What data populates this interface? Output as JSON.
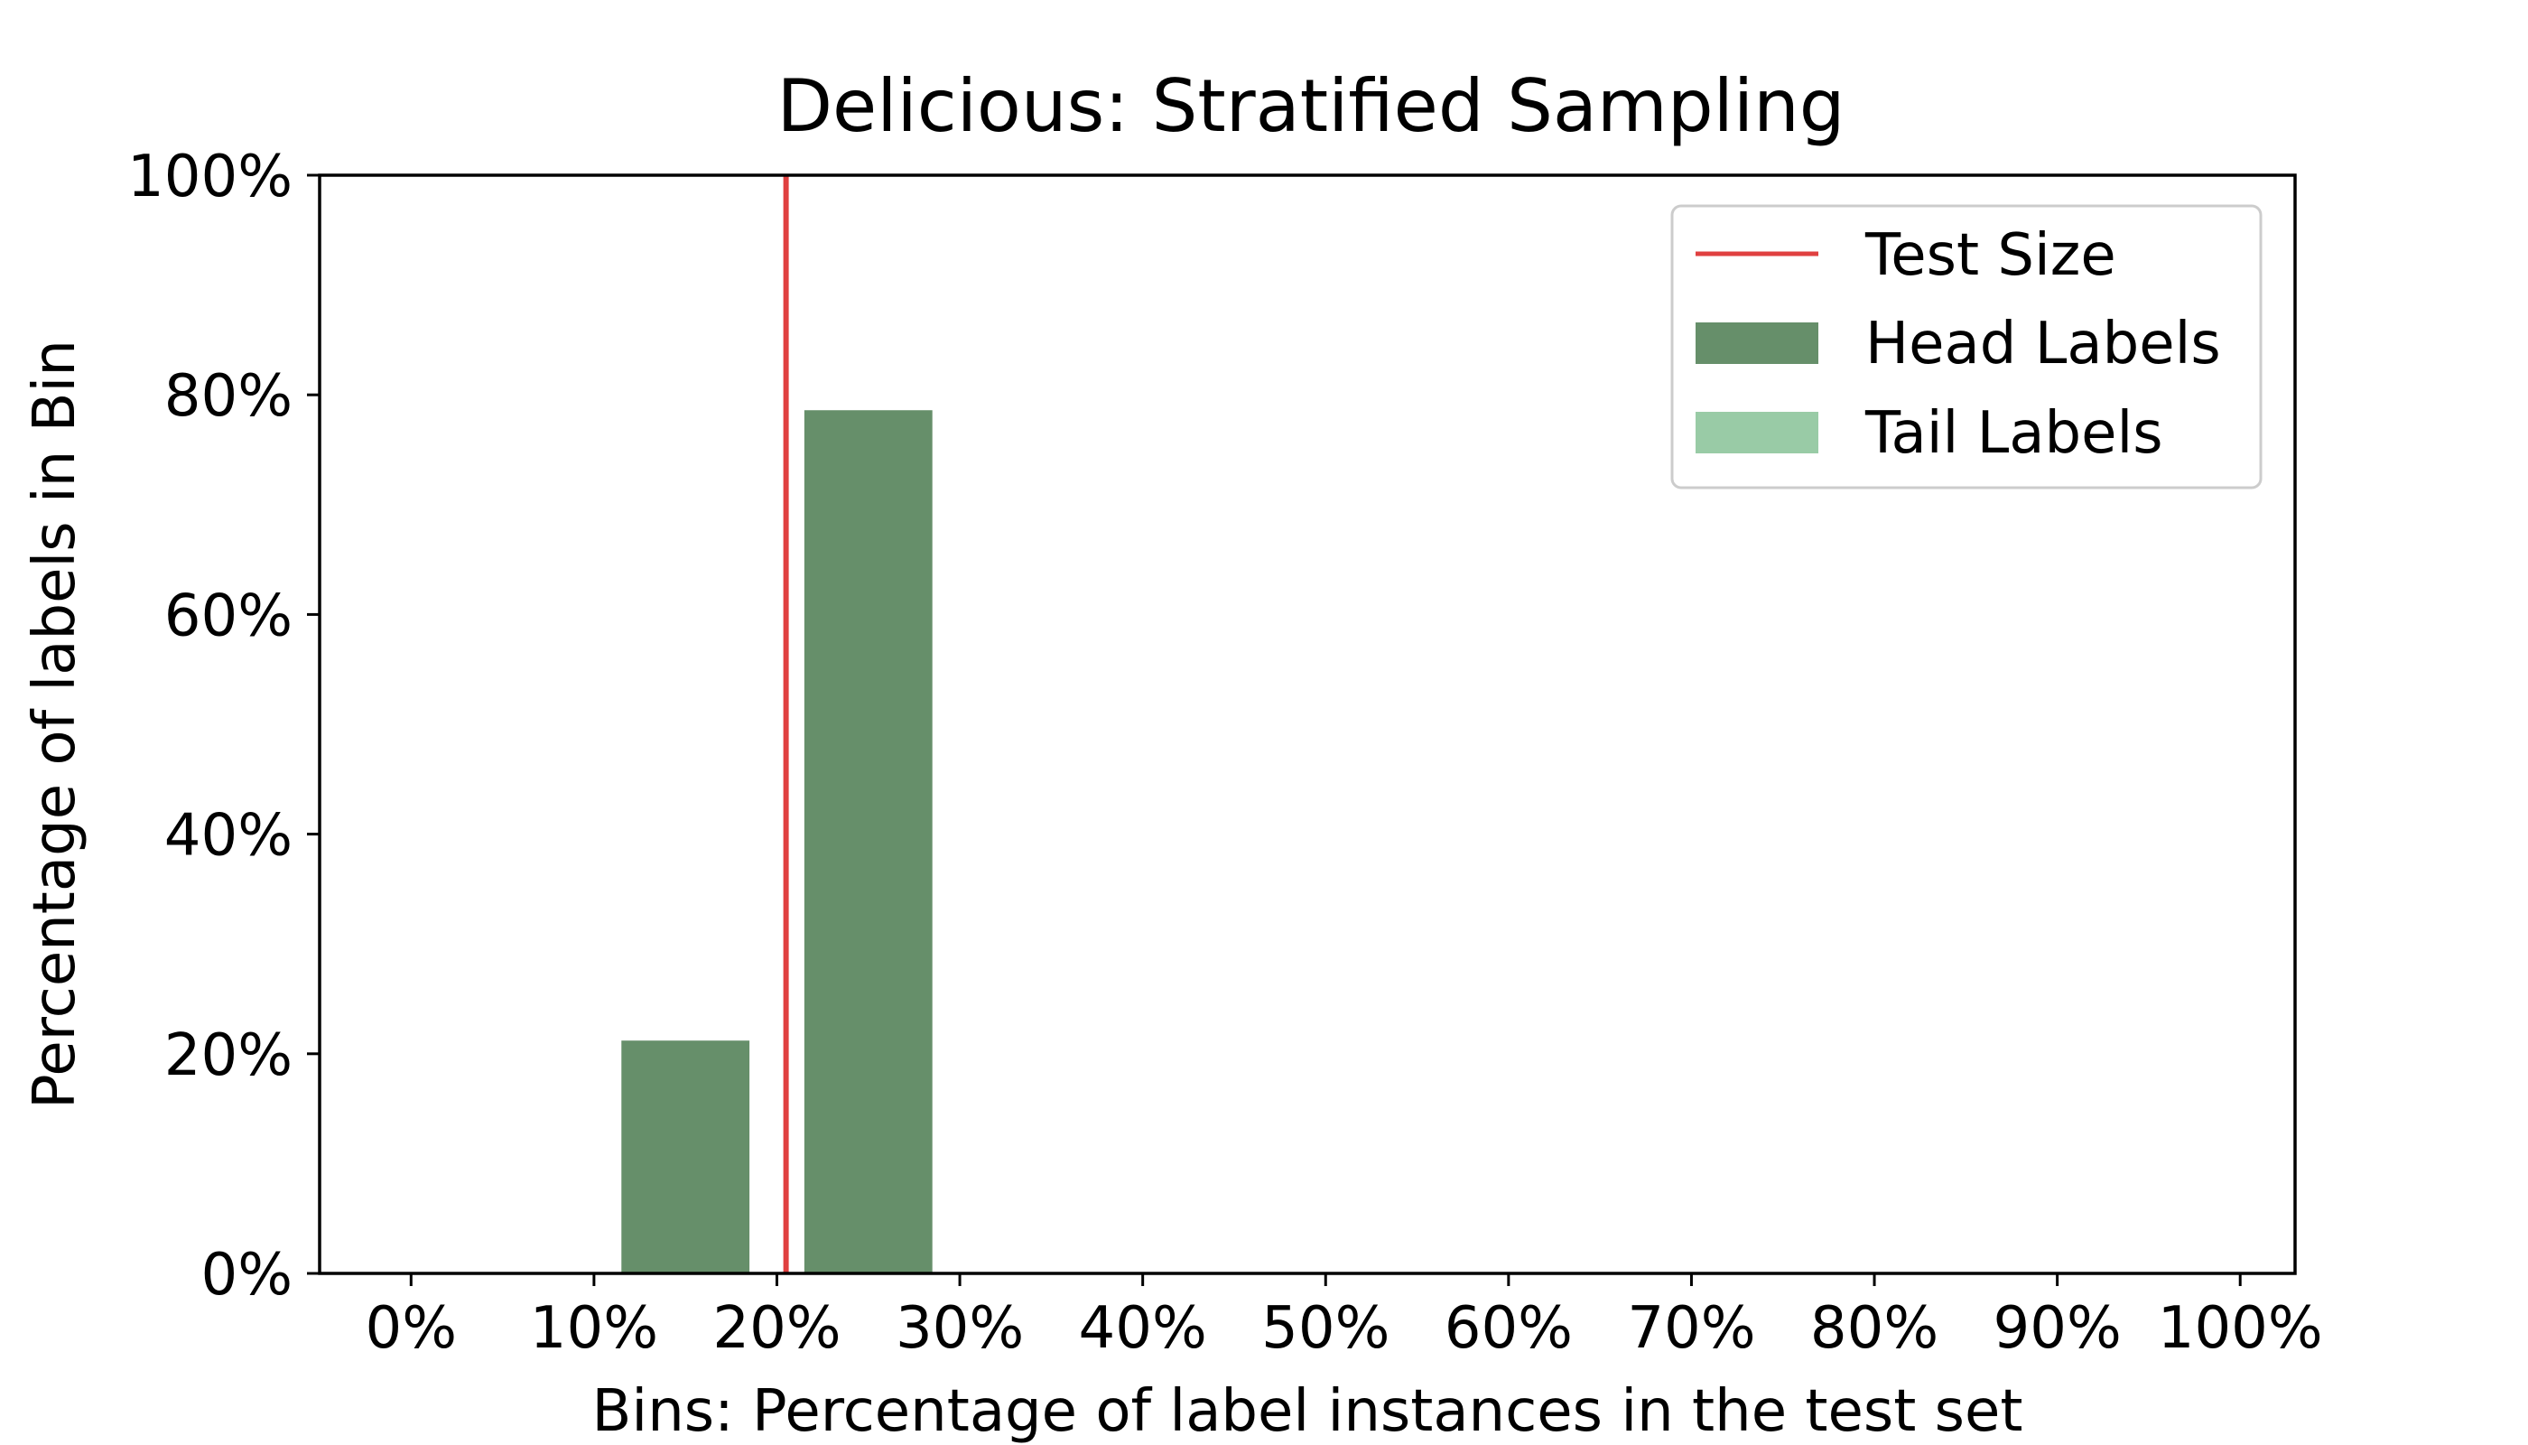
{
  "chart_data": {
    "type": "bar",
    "title": "Delicious: Stratified Sampling",
    "xlabel": "Bins: Percentage of label instances in the test set",
    "ylabel": "Percentage of labels in Bin",
    "xlim": [
      -0.05,
      1.03
    ],
    "ylim": [
      0,
      1
    ],
    "x_ticks": [
      "0%",
      "10%",
      "20%",
      "30%",
      "40%",
      "50%",
      "60%",
      "70%",
      "80%",
      "90%",
      "100%"
    ],
    "y_ticks": [
      "0%",
      "20%",
      "40%",
      "60%",
      "80%",
      "100%"
    ],
    "bin_width": 0.07,
    "grid": false,
    "legend_position": "top-right",
    "test_size": 0.2,
    "series": [
      {
        "name": "Head Labels",
        "color": "#668f6a",
        "bars": [
          {
            "x": 0.15,
            "value": 0.212
          },
          {
            "x": 0.25,
            "value": 0.786
          }
        ]
      },
      {
        "name": "Tail Labels",
        "color": "#99cba6",
        "bars": []
      }
    ],
    "reference_lines": [
      {
        "name": "Test Size",
        "x": 0.205,
        "color": "#e04040"
      }
    ]
  }
}
